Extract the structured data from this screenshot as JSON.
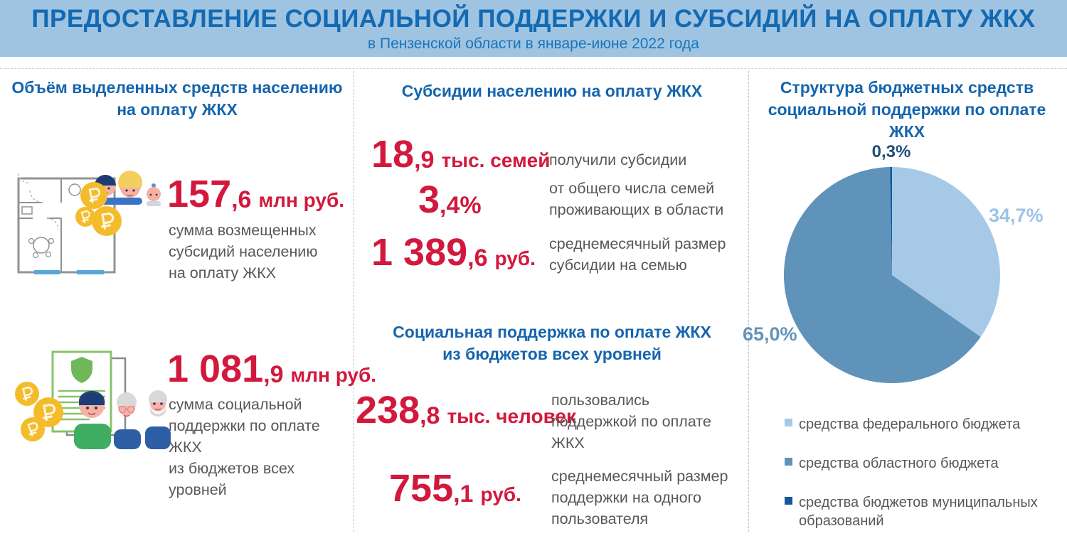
{
  "header": {
    "title": "ПРЕДОСТАВЛЕНИЕ СОЦИАЛЬНОЙ ПОДДЕРЖКИ И СУБСИДИЙ НА ОПЛАТУ ЖКХ",
    "subtitle": "в Пензенской области в январе-июне 2022 года"
  },
  "colors": {
    "header_bg": "#9ec4e2",
    "title_blue": "#146ab2",
    "heading_blue": "#1565ae",
    "accent_red": "#d2193d",
    "text_gray": "#58585a"
  },
  "left_column": {
    "heading": "Объём выделенных средств населению\nна оплату ЖКХ",
    "stats": [
      {
        "icon": "apartment-floorplan-family-coins-icon",
        "value_main": "157",
        "value_decimal": ",6",
        "unit": "млн руб.",
        "description": "сумма возмещенных\nсубсидий населению\nна оплату ЖКХ"
      },
      {
        "icon": "contract-shield-family-coins-icon",
        "value_main": "1 081",
        "value_decimal": ",9",
        "unit": "млн руб.",
        "description": "сумма социальной\nподдержки по оплате ЖКХ\nиз бюджетов всех уровней"
      }
    ]
  },
  "middle_column": {
    "heading_subsidies": "Субсидии населению на оплату ЖКХ",
    "subsidy_stats": [
      {
        "value_main": "18",
        "value_decimal": ",9",
        "unit": "тыс. семей",
        "description": "получили субсидии"
      },
      {
        "value_main": "3",
        "value_decimal": ",4%",
        "unit": "",
        "description": "от общего числа семей\nпроживающих в области"
      },
      {
        "value_main": "1 389",
        "value_decimal": ",6",
        "unit": "руб.",
        "description": "среднемесячный размер\nсубсидии на семью"
      }
    ],
    "heading_support": "Социальная поддержка по оплате ЖКХ\nиз бюджетов всех уровней",
    "support_stats": [
      {
        "value_main": "238",
        "value_decimal": ",8",
        "unit": "тыс. человек",
        "description": "пользовались\nподдержкой по оплате\nЖКХ"
      },
      {
        "value_main": "755",
        "value_decimal": ",1",
        "unit": "руб.",
        "description": "среднемесячный размер\nподдержки на одного\nпользователя"
      }
    ]
  },
  "right_column": {
    "heading": "Структура бюджетных средств\nсоциальной поддержки по оплате ЖКХ"
  },
  "chart_data": {
    "type": "pie",
    "title": "Структура бюджетных средств социальной поддержки по оплате ЖКХ",
    "start_angle_deg": 0,
    "direction": "clockwise",
    "legend_position": "bottom",
    "slices": [
      {
        "label": "средства федерального бюджета",
        "value": 34.7,
        "display": "34,7%",
        "color": "#a6c9e8",
        "label_color": "#9dc3e6"
      },
      {
        "label": "средства областного бюджета",
        "value": 65.0,
        "display": "65,0%",
        "color": "#5f93b9",
        "label_color": "#6494ba"
      },
      {
        "label": "средства бюджетов муниципальных образований",
        "value": 0.3,
        "display": "0,3%",
        "color": "#14589c",
        "label_color": "#1f4e79"
      }
    ]
  }
}
